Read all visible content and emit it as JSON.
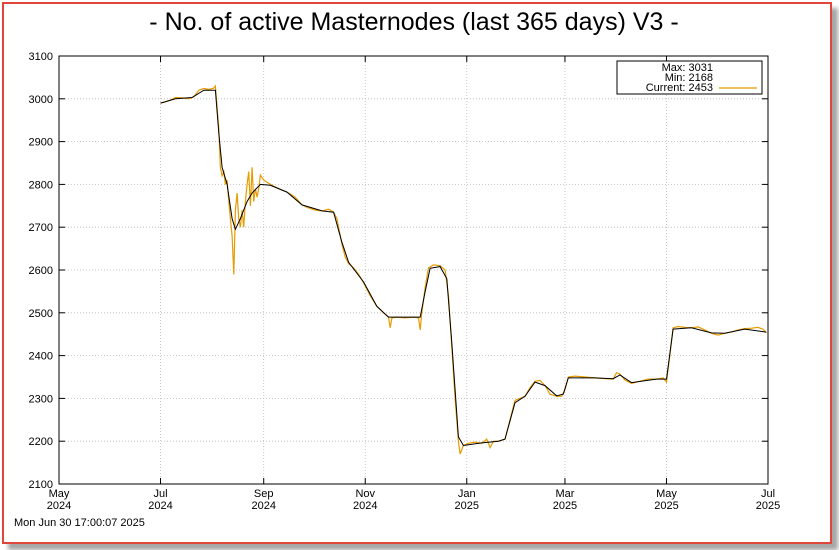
{
  "footer": {
    "timestamp": "Mon Jun 30 17:00:07 2025"
  },
  "chart_data": {
    "type": "line",
    "title": "- No. of active Masternodes (last 365 days) V3 -",
    "xlabel": "",
    "ylabel": "",
    "ylim": [
      2100,
      3100
    ],
    "xlim": [
      "2024-05-01",
      "2025-07-01"
    ],
    "y_ticks": [
      2100,
      2200,
      2300,
      2400,
      2500,
      2600,
      2700,
      2800,
      2900,
      3000,
      3100
    ],
    "x_ticks": [
      {
        "date": "2024-05-01",
        "month": "May",
        "year": "2024"
      },
      {
        "date": "2024-07-01",
        "month": "Jul",
        "year": "2024"
      },
      {
        "date": "2024-09-01",
        "month": "Sep",
        "year": "2024"
      },
      {
        "date": "2024-11-01",
        "month": "Nov",
        "year": "2024"
      },
      {
        "date": "2025-01-01",
        "month": "Jan",
        "year": "2025"
      },
      {
        "date": "2025-03-01",
        "month": "Mar",
        "year": "2025"
      },
      {
        "date": "2025-05-01",
        "month": "May",
        "year": "2025"
      },
      {
        "date": "2025-07-01",
        "month": "Jul",
        "year": "2025"
      }
    ],
    "grid": true,
    "legend": {
      "placement": "top-right",
      "max_label": "Max: 3031",
      "min_label": "Min: 2168",
      "current_label": "Current: 2453"
    },
    "colors": {
      "raw": "#e69b00",
      "smoothed": "#000000",
      "frame": "#e0473a"
    },
    "series": [
      {
        "role": "raw",
        "points": [
          [
            "2024-07-01",
            2990
          ],
          [
            "2024-07-04",
            2993
          ],
          [
            "2024-07-07",
            2997
          ],
          [
            "2024-07-10",
            3003
          ],
          [
            "2024-07-14",
            3002
          ],
          [
            "2024-07-18",
            3000
          ],
          [
            "2024-07-21",
            3005
          ],
          [
            "2024-07-24",
            3020
          ],
          [
            "2024-07-27",
            3024
          ],
          [
            "2024-07-30",
            3022
          ],
          [
            "2024-08-02",
            3025
          ],
          [
            "2024-08-03",
            3030
          ],
          [
            "2024-08-04",
            2980
          ],
          [
            "2024-08-05",
            2930
          ],
          [
            "2024-08-06",
            2840
          ],
          [
            "2024-08-07",
            2820
          ],
          [
            "2024-08-08",
            2830
          ],
          [
            "2024-08-09",
            2800
          ],
          [
            "2024-08-10",
            2810
          ],
          [
            "2024-08-11",
            2760
          ],
          [
            "2024-08-12",
            2720
          ],
          [
            "2024-08-13",
            2680
          ],
          [
            "2024-08-14",
            2590
          ],
          [
            "2024-08-15",
            2740
          ],
          [
            "2024-08-16",
            2780
          ],
          [
            "2024-08-17",
            2720
          ],
          [
            "2024-08-18",
            2700
          ],
          [
            "2024-08-19",
            2740
          ],
          [
            "2024-08-20",
            2700
          ],
          [
            "2024-08-21",
            2760
          ],
          [
            "2024-08-22",
            2800
          ],
          [
            "2024-08-23",
            2830
          ],
          [
            "2024-08-24",
            2750
          ],
          [
            "2024-08-25",
            2840
          ],
          [
            "2024-08-26",
            2760
          ],
          [
            "2024-08-27",
            2790
          ],
          [
            "2024-08-28",
            2770
          ],
          [
            "2024-08-29",
            2790
          ],
          [
            "2024-08-30",
            2822
          ],
          [
            "2024-09-01",
            2810
          ],
          [
            "2024-09-05",
            2800
          ],
          [
            "2024-09-10",
            2790
          ],
          [
            "2024-09-15",
            2782
          ],
          [
            "2024-09-20",
            2770
          ],
          [
            "2024-09-24",
            2752
          ],
          [
            "2024-09-28",
            2745
          ],
          [
            "2024-10-02",
            2740
          ],
          [
            "2024-10-06",
            2738
          ],
          [
            "2024-10-10",
            2742
          ],
          [
            "2024-10-13",
            2735
          ],
          [
            "2024-10-15",
            2720
          ],
          [
            "2024-10-16",
            2700
          ],
          [
            "2024-10-18",
            2660
          ],
          [
            "2024-10-20",
            2630
          ],
          [
            "2024-10-22",
            2615
          ],
          [
            "2024-10-25",
            2605
          ],
          [
            "2024-10-28",
            2590
          ],
          [
            "2024-10-31",
            2570
          ],
          [
            "2024-11-04",
            2540
          ],
          [
            "2024-11-08",
            2515
          ],
          [
            "2024-11-12",
            2500
          ],
          [
            "2024-11-15",
            2490
          ],
          [
            "2024-11-16",
            2465
          ],
          [
            "2024-11-17",
            2488
          ],
          [
            "2024-11-20",
            2490
          ],
          [
            "2024-11-25",
            2488
          ],
          [
            "2024-11-30",
            2490
          ],
          [
            "2024-12-03",
            2488
          ],
          [
            "2024-12-04",
            2460
          ],
          [
            "2024-12-05",
            2500
          ],
          [
            "2024-12-07",
            2560
          ],
          [
            "2024-12-09",
            2605
          ],
          [
            "2024-12-12",
            2612
          ],
          [
            "2024-12-16",
            2610
          ],
          [
            "2024-12-19",
            2600
          ],
          [
            "2024-12-21",
            2540
          ],
          [
            "2024-12-23",
            2420
          ],
          [
            "2024-12-25",
            2300
          ],
          [
            "2024-12-27",
            2200
          ],
          [
            "2024-12-28",
            2170
          ],
          [
            "2024-12-30",
            2190
          ],
          [
            "2025-01-02",
            2195
          ],
          [
            "2025-01-06",
            2198
          ],
          [
            "2025-01-10",
            2195
          ],
          [
            "2025-01-13",
            2205
          ],
          [
            "2025-01-15",
            2185
          ],
          [
            "2025-01-17",
            2200
          ],
          [
            "2025-01-20",
            2200
          ],
          [
            "2025-01-24",
            2205
          ],
          [
            "2025-01-27",
            2250
          ],
          [
            "2025-01-30",
            2295
          ],
          [
            "2025-02-02",
            2300
          ],
          [
            "2025-02-05",
            2305
          ],
          [
            "2025-02-08",
            2325
          ],
          [
            "2025-02-11",
            2340
          ],
          [
            "2025-02-14",
            2342
          ],
          [
            "2025-02-17",
            2330
          ],
          [
            "2025-02-20",
            2310
          ],
          [
            "2025-02-24",
            2305
          ],
          [
            "2025-02-27",
            2305
          ],
          [
            "2025-03-01",
            2320
          ],
          [
            "2025-03-03",
            2350
          ],
          [
            "2025-03-07",
            2352
          ],
          [
            "2025-03-13",
            2350
          ],
          [
            "2025-03-19",
            2348
          ],
          [
            "2025-03-25",
            2346
          ],
          [
            "2025-03-30",
            2345
          ],
          [
            "2025-04-01",
            2360
          ],
          [
            "2025-04-03",
            2357
          ],
          [
            "2025-04-06",
            2343
          ],
          [
            "2025-04-10",
            2335
          ],
          [
            "2025-04-15",
            2340
          ],
          [
            "2025-04-20",
            2345
          ],
          [
            "2025-04-25",
            2345
          ],
          [
            "2025-04-29",
            2348
          ],
          [
            "2025-05-01",
            2338
          ],
          [
            "2025-05-03",
            2400
          ],
          [
            "2025-05-05",
            2465
          ],
          [
            "2025-05-08",
            2468
          ],
          [
            "2025-05-12",
            2466
          ],
          [
            "2025-05-16",
            2465
          ],
          [
            "2025-05-20",
            2467
          ],
          [
            "2025-05-24",
            2460
          ],
          [
            "2025-05-28",
            2452
          ],
          [
            "2025-06-01",
            2448
          ],
          [
            "2025-06-05",
            2452
          ],
          [
            "2025-06-09",
            2455
          ],
          [
            "2025-06-13",
            2460
          ],
          [
            "2025-06-17",
            2463
          ],
          [
            "2025-06-21",
            2464
          ],
          [
            "2025-06-25",
            2466
          ],
          [
            "2025-06-28",
            2462
          ],
          [
            "2025-06-30",
            2453
          ]
        ]
      },
      {
        "role": "smoothed",
        "points": [
          [
            "2024-07-01",
            2990
          ],
          [
            "2024-07-10",
            3000
          ],
          [
            "2024-07-20",
            3003
          ],
          [
            "2024-07-27",
            3020
          ],
          [
            "2024-08-03",
            3020
          ],
          [
            "2024-08-05",
            2920
          ],
          [
            "2024-08-07",
            2840
          ],
          [
            "2024-08-10",
            2800
          ],
          [
            "2024-08-13",
            2720
          ],
          [
            "2024-08-15",
            2695
          ],
          [
            "2024-08-18",
            2720
          ],
          [
            "2024-08-22",
            2760
          ],
          [
            "2024-08-25",
            2780
          ],
          [
            "2024-08-30",
            2800
          ],
          [
            "2024-09-05",
            2798
          ],
          [
            "2024-09-15",
            2782
          ],
          [
            "2024-09-24",
            2752
          ],
          [
            "2024-10-06",
            2738
          ],
          [
            "2024-10-13",
            2735
          ],
          [
            "2024-10-18",
            2665
          ],
          [
            "2024-10-22",
            2618
          ],
          [
            "2024-10-31",
            2572
          ],
          [
            "2024-11-08",
            2515
          ],
          [
            "2024-11-15",
            2490
          ],
          [
            "2024-11-30",
            2490
          ],
          [
            "2024-12-04",
            2490
          ],
          [
            "2024-12-07",
            2550
          ],
          [
            "2024-12-10",
            2604
          ],
          [
            "2024-12-16",
            2608
          ],
          [
            "2024-12-20",
            2580
          ],
          [
            "2024-12-23",
            2430
          ],
          [
            "2024-12-27",
            2210
          ],
          [
            "2024-12-30",
            2190
          ],
          [
            "2025-01-10",
            2196
          ],
          [
            "2025-01-20",
            2200
          ],
          [
            "2025-01-24",
            2205
          ],
          [
            "2025-01-30",
            2290
          ],
          [
            "2025-02-05",
            2305
          ],
          [
            "2025-02-11",
            2338
          ],
          [
            "2025-02-17",
            2330
          ],
          [
            "2025-02-24",
            2306
          ],
          [
            "2025-02-28",
            2310
          ],
          [
            "2025-03-03",
            2348
          ],
          [
            "2025-03-19",
            2348
          ],
          [
            "2025-03-30",
            2346
          ],
          [
            "2025-04-03",
            2355
          ],
          [
            "2025-04-10",
            2337
          ],
          [
            "2025-04-25",
            2345
          ],
          [
            "2025-05-01",
            2345
          ],
          [
            "2025-05-05",
            2462
          ],
          [
            "2025-05-16",
            2465
          ],
          [
            "2025-05-28",
            2453
          ],
          [
            "2025-06-05",
            2452
          ],
          [
            "2025-06-17",
            2462
          ],
          [
            "2025-06-30",
            2455
          ]
        ]
      }
    ]
  }
}
